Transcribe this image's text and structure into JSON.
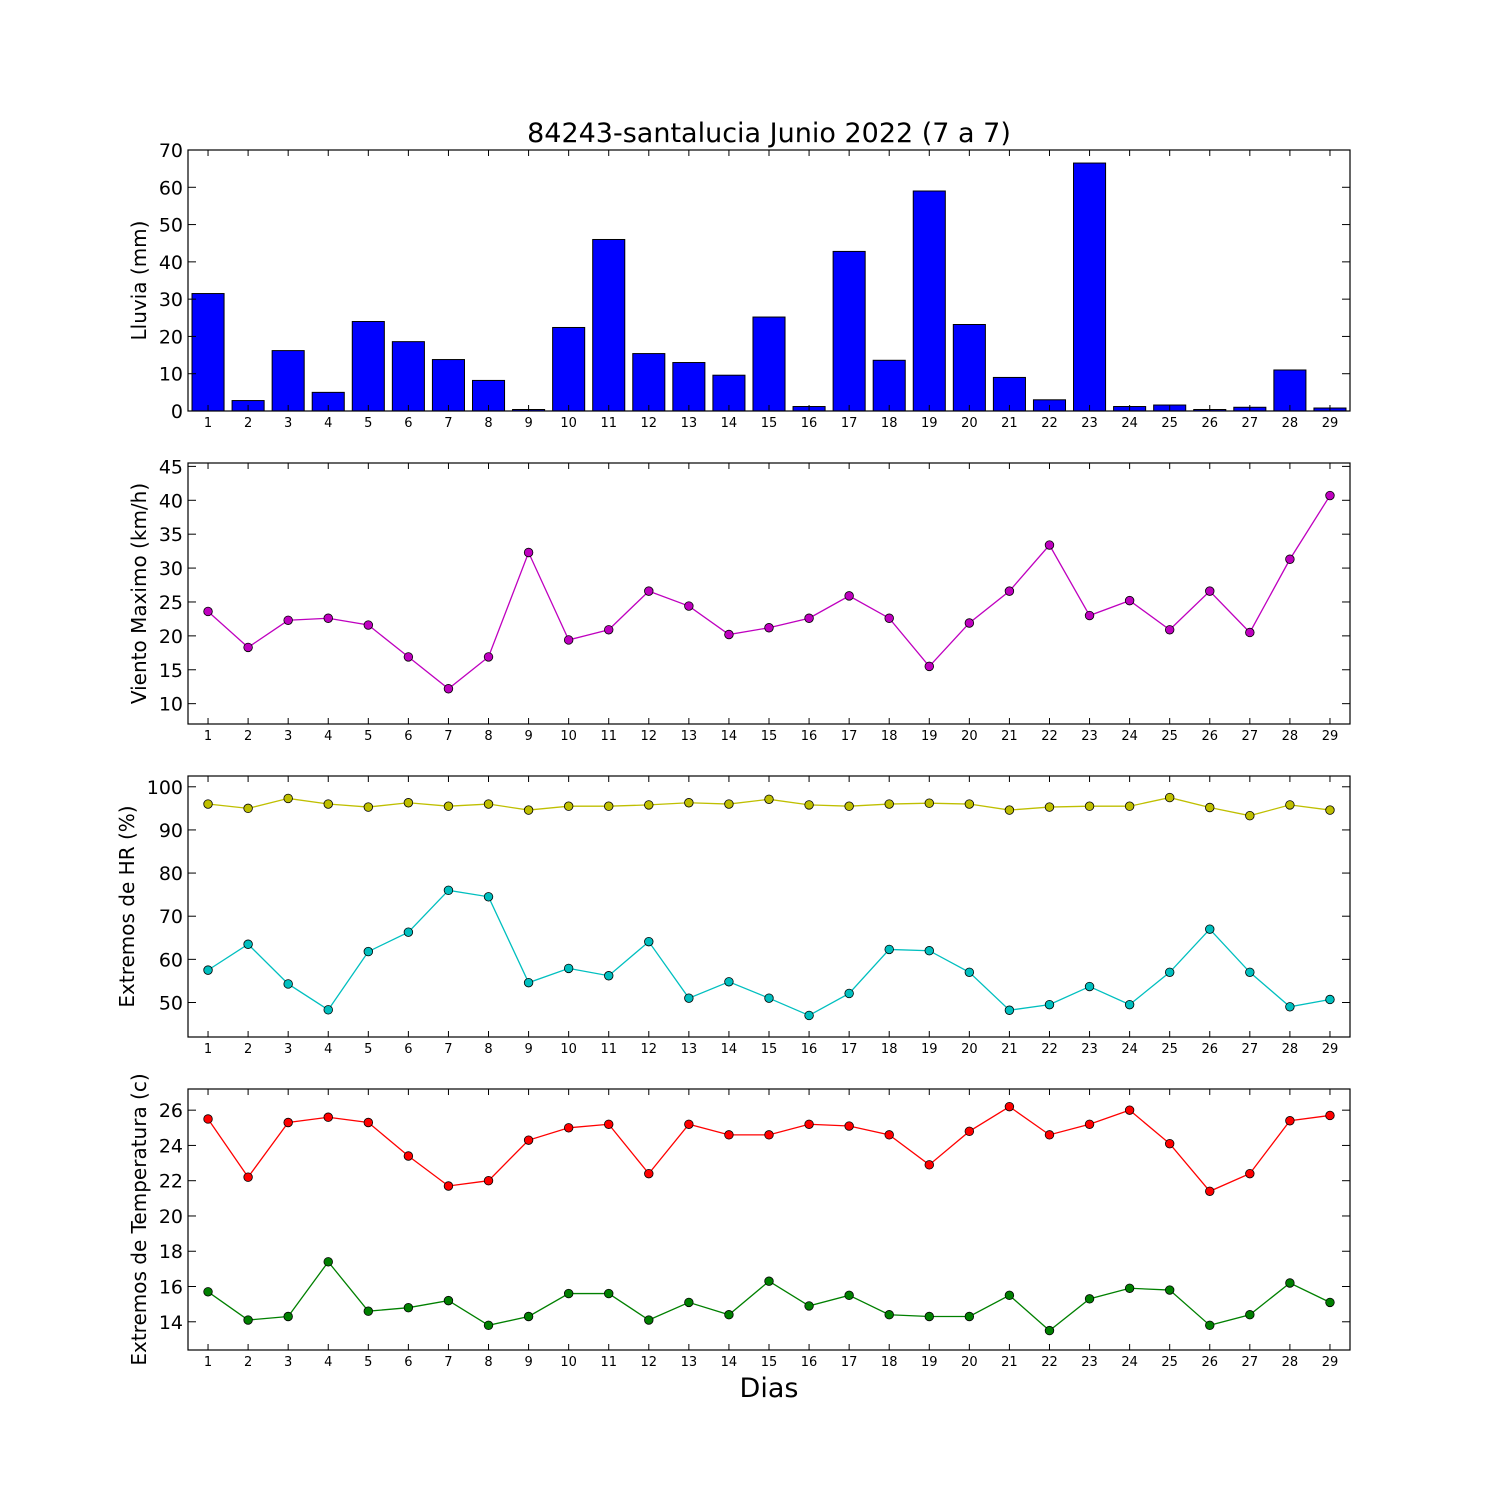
{
  "figure": {
    "title": "84243-santalucia Junio 2022  (7 a 7)",
    "xlabel": "Dias"
  },
  "chart_data": [
    {
      "type": "bar",
      "ylabel": "Lluvia (mm)",
      "ylim": [
        0,
        70
      ],
      "yticks": [
        0,
        10,
        20,
        30,
        40,
        50,
        60,
        70
      ],
      "xlim": [
        0.5,
        29.5
      ],
      "categories": [
        1,
        2,
        3,
        4,
        5,
        6,
        7,
        8,
        9,
        10,
        11,
        12,
        13,
        14,
        15,
        16,
        17,
        18,
        19,
        20,
        21,
        22,
        23,
        24,
        25,
        26,
        27,
        28,
        29
      ],
      "series": [
        {
          "color": "#0000ff",
          "values": [
            31.5,
            2.8,
            16.2,
            5.0,
            24.0,
            18.6,
            13.8,
            8.2,
            0.4,
            22.4,
            46.0,
            15.4,
            13.0,
            9.6,
            25.2,
            1.2,
            42.8,
            13.6,
            59.0,
            23.2,
            9.0,
            3.0,
            66.5,
            1.2,
            1.6,
            0.4,
            1.0,
            11.0,
            0.8
          ]
        }
      ]
    },
    {
      "type": "line",
      "ylabel": "Viento Maximo (km/h)",
      "ylim": [
        7,
        45.5
      ],
      "yticks": [
        10,
        15,
        20,
        25,
        30,
        35,
        40,
        45
      ],
      "xlim": [
        0.5,
        29.5
      ],
      "x": [
        1,
        2,
        3,
        4,
        5,
        6,
        7,
        8,
        9,
        10,
        11,
        12,
        13,
        14,
        15,
        16,
        17,
        18,
        19,
        20,
        21,
        22,
        23,
        24,
        25,
        26,
        27,
        28,
        29
      ],
      "series": [
        {
          "color": "#bf00bf",
          "values": [
            23.6,
            18.3,
            22.3,
            22.6,
            21.6,
            16.9,
            12.2,
            16.9,
            32.3,
            19.4,
            20.9,
            26.6,
            24.4,
            20.2,
            21.2,
            22.6,
            25.9,
            22.6,
            15.5,
            21.9,
            26.6,
            33.4,
            23.0,
            25.2,
            20.9,
            26.6,
            20.5,
            31.3,
            40.7
          ]
        }
      ]
    },
    {
      "type": "line",
      "ylabel": "Extremos de HR (%)",
      "ylim": [
        42,
        102.5
      ],
      "yticks": [
        50,
        60,
        70,
        80,
        90,
        100
      ],
      "xlim": [
        0.5,
        29.5
      ],
      "x": [
        1,
        2,
        3,
        4,
        5,
        6,
        7,
        8,
        9,
        10,
        11,
        12,
        13,
        14,
        15,
        16,
        17,
        18,
        19,
        20,
        21,
        22,
        23,
        24,
        25,
        26,
        27,
        28,
        29
      ],
      "series": [
        {
          "color": "#bfbf00",
          "values": [
            96.0,
            95.0,
            97.3,
            96.0,
            95.3,
            96.3,
            95.5,
            96.0,
            94.6,
            95.5,
            95.5,
            95.8,
            96.3,
            96.0,
            97.1,
            95.8,
            95.5,
            96.0,
            96.2,
            96.0,
            94.6,
            95.3,
            95.5,
            95.5,
            97.5,
            95.2,
            93.3,
            95.8,
            94.6
          ]
        },
        {
          "color": "#00bfbf",
          "values": [
            57.5,
            63.5,
            54.3,
            48.3,
            61.8,
            66.3,
            76.0,
            74.5,
            54.6,
            57.9,
            56.2,
            64.1,
            51.0,
            54.8,
            51.0,
            47.0,
            52.1,
            62.3,
            62.0,
            57.0,
            48.2,
            49.5,
            53.7,
            49.5,
            57.0,
            67.0,
            57.0,
            49.0,
            50.7
          ]
        }
      ]
    },
    {
      "type": "line",
      "ylabel": "Extremos de Temperatura (c)",
      "ylim": [
        12.4,
        27.2
      ],
      "yticks": [
        14,
        16,
        18,
        20,
        22,
        24,
        26
      ],
      "xlim": [
        0.5,
        29.5
      ],
      "x": [
        1,
        2,
        3,
        4,
        5,
        6,
        7,
        8,
        9,
        10,
        11,
        12,
        13,
        14,
        15,
        16,
        17,
        18,
        19,
        20,
        21,
        22,
        23,
        24,
        25,
        26,
        27,
        28,
        29
      ],
      "series": [
        {
          "color": "#ff0000",
          "values": [
            25.5,
            22.2,
            25.3,
            25.6,
            25.3,
            23.4,
            21.7,
            22.0,
            24.3,
            25.0,
            25.2,
            22.4,
            25.2,
            24.6,
            24.6,
            25.2,
            25.1,
            24.6,
            22.9,
            24.8,
            26.2,
            24.6,
            25.2,
            26.0,
            24.1,
            21.4,
            22.4,
            25.4,
            25.7
          ]
        },
        {
          "color": "#008000",
          "values": [
            15.7,
            14.1,
            14.3,
            17.4,
            14.6,
            14.8,
            15.2,
            13.8,
            14.3,
            15.6,
            15.6,
            14.1,
            15.1,
            14.4,
            16.3,
            14.9,
            15.5,
            14.4,
            14.3,
            14.3,
            15.5,
            13.5,
            15.3,
            15.9,
            15.8,
            13.8,
            14.4,
            16.2,
            15.1
          ]
        }
      ]
    }
  ]
}
